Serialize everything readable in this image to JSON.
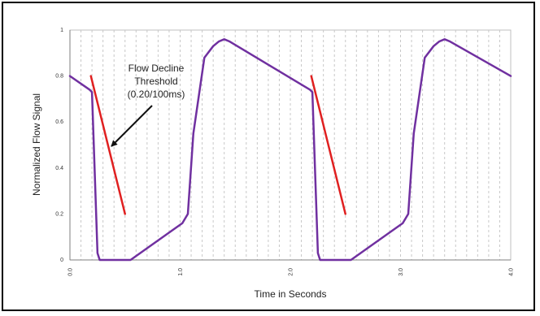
{
  "chart_data": {
    "type": "line",
    "title": "",
    "xlabel": "Time in Seconds",
    "ylabel": "Normalized Flow Signal",
    "xlim": [
      0,
      4.0
    ],
    "ylim": [
      0,
      1
    ],
    "grid": {
      "x_minor_step": 0.1,
      "style": "dashed-vertical"
    },
    "y_ticks": [
      "0",
      "0.2",
      "0.4",
      "0.6",
      "0.8",
      "1"
    ],
    "y_tick_values": [
      0,
      0.2,
      0.4,
      0.6,
      0.8,
      1
    ],
    "x_ticks": [
      "0.0",
      "1.0",
      "2.0",
      "3.0",
      "4.0"
    ],
    "x_tick_values": [
      0,
      1,
      2,
      3,
      4
    ],
    "series": [
      {
        "color": "#7030a0",
        "x": [
          0.0,
          0.18,
          0.2,
          0.25,
          0.27,
          0.28,
          0.55,
          1.02,
          1.07,
          1.12,
          1.22,
          1.3,
          1.35,
          1.4,
          1.45,
          2.18,
          2.2,
          2.25,
          2.27,
          2.28,
          2.55,
          3.02,
          3.07,
          3.12,
          3.22,
          3.3,
          3.35,
          3.4,
          3.45,
          4.0
        ],
        "y": [
          0.8,
          0.74,
          0.73,
          0.03,
          0.0,
          0.0,
          0.0,
          0.16,
          0.2,
          0.55,
          0.88,
          0.93,
          0.95,
          0.96,
          0.95,
          0.74,
          0.73,
          0.03,
          0.0,
          0.0,
          0.0,
          0.16,
          0.2,
          0.55,
          0.88,
          0.93,
          0.95,
          0.96,
          0.95,
          0.8
        ]
      },
      {
        "color": "#e02020",
        "segments": [
          {
            "x": [
              0.19,
              0.5
            ],
            "y": [
              0.8,
              0.2
            ]
          },
          {
            "x": [
              2.19,
              2.5
            ],
            "y": [
              0.8,
              0.2
            ]
          }
        ]
      }
    ],
    "annotation": {
      "lines": [
        "Flow Decline",
        "Threshold",
        "(0.20/100ms)"
      ],
      "points_to": {
        "x": 0.35,
        "y": 0.49
      }
    }
  }
}
